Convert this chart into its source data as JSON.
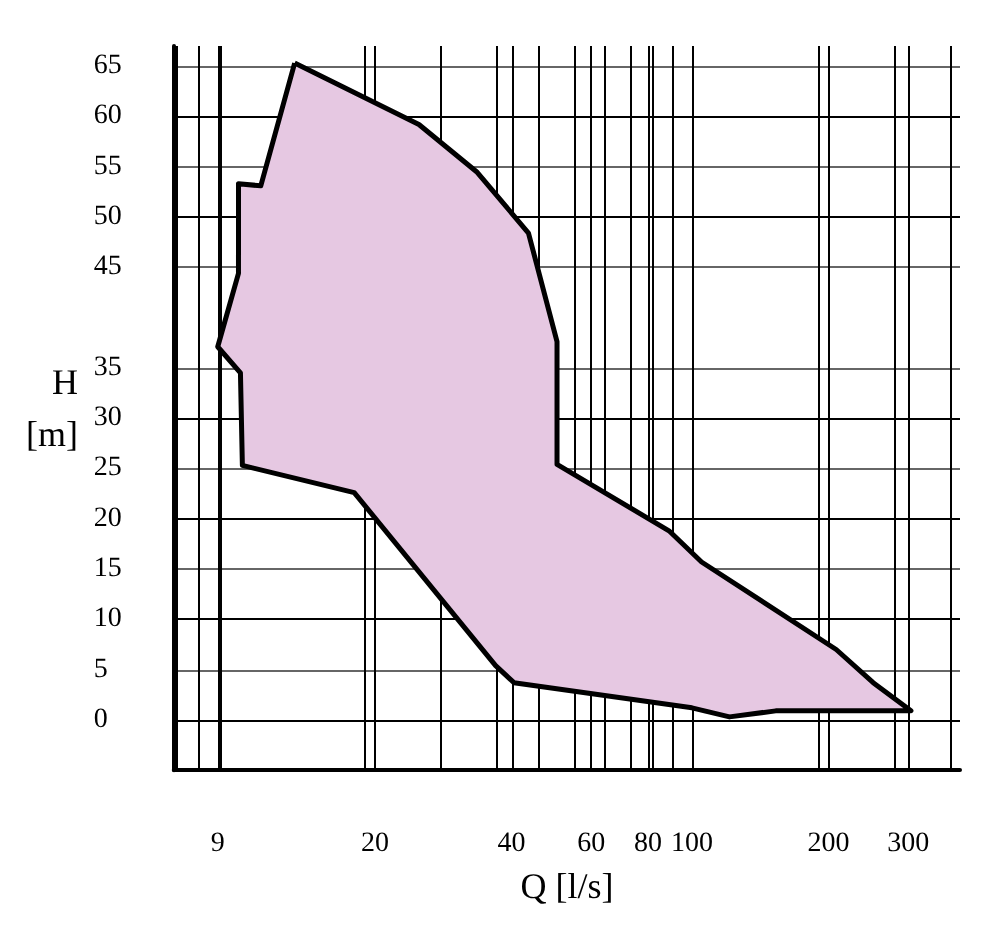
{
  "chart_data": {
    "type": "area",
    "xlabel": "Q [l/s]",
    "ylabel": "H [m]",
    "log": "x",
    "grid": true,
    "marker": "none",
    "xlim": [
      7.2,
      390
    ],
    "xticks": [
      9,
      20,
      40,
      60,
      80,
      100,
      200,
      300
    ],
    "ylim": [
      -5,
      67
    ],
    "yticks": [
      0,
      5,
      10,
      15,
      20,
      25,
      30,
      35,
      45,
      50,
      55,
      60,
      65
    ],
    "series": [
      {
        "color": "#e6c8e2",
        "x": [
          13.3,
          25,
          33.5,
          43.6,
          50.4,
          50.4,
          89,
          105,
          208,
          251,
          304,
          153,
          121,
          100,
          40.5,
          36.9,
          18,
          10.2,
          10.1,
          9,
          10,
          10,
          11.2,
          13.3
        ],
        "values": [
          65.3,
          59.2,
          54.5,
          48.4,
          37.6,
          25.4,
          18.8,
          15.7,
          7,
          3.7,
          0.9,
          0.9,
          0.3,
          1.2,
          3.7,
          5.4,
          22.6,
          25.3,
          34.5,
          37.1,
          44.4,
          53.3,
          53.1,
          65.3
        ]
      }
    ]
  }
}
